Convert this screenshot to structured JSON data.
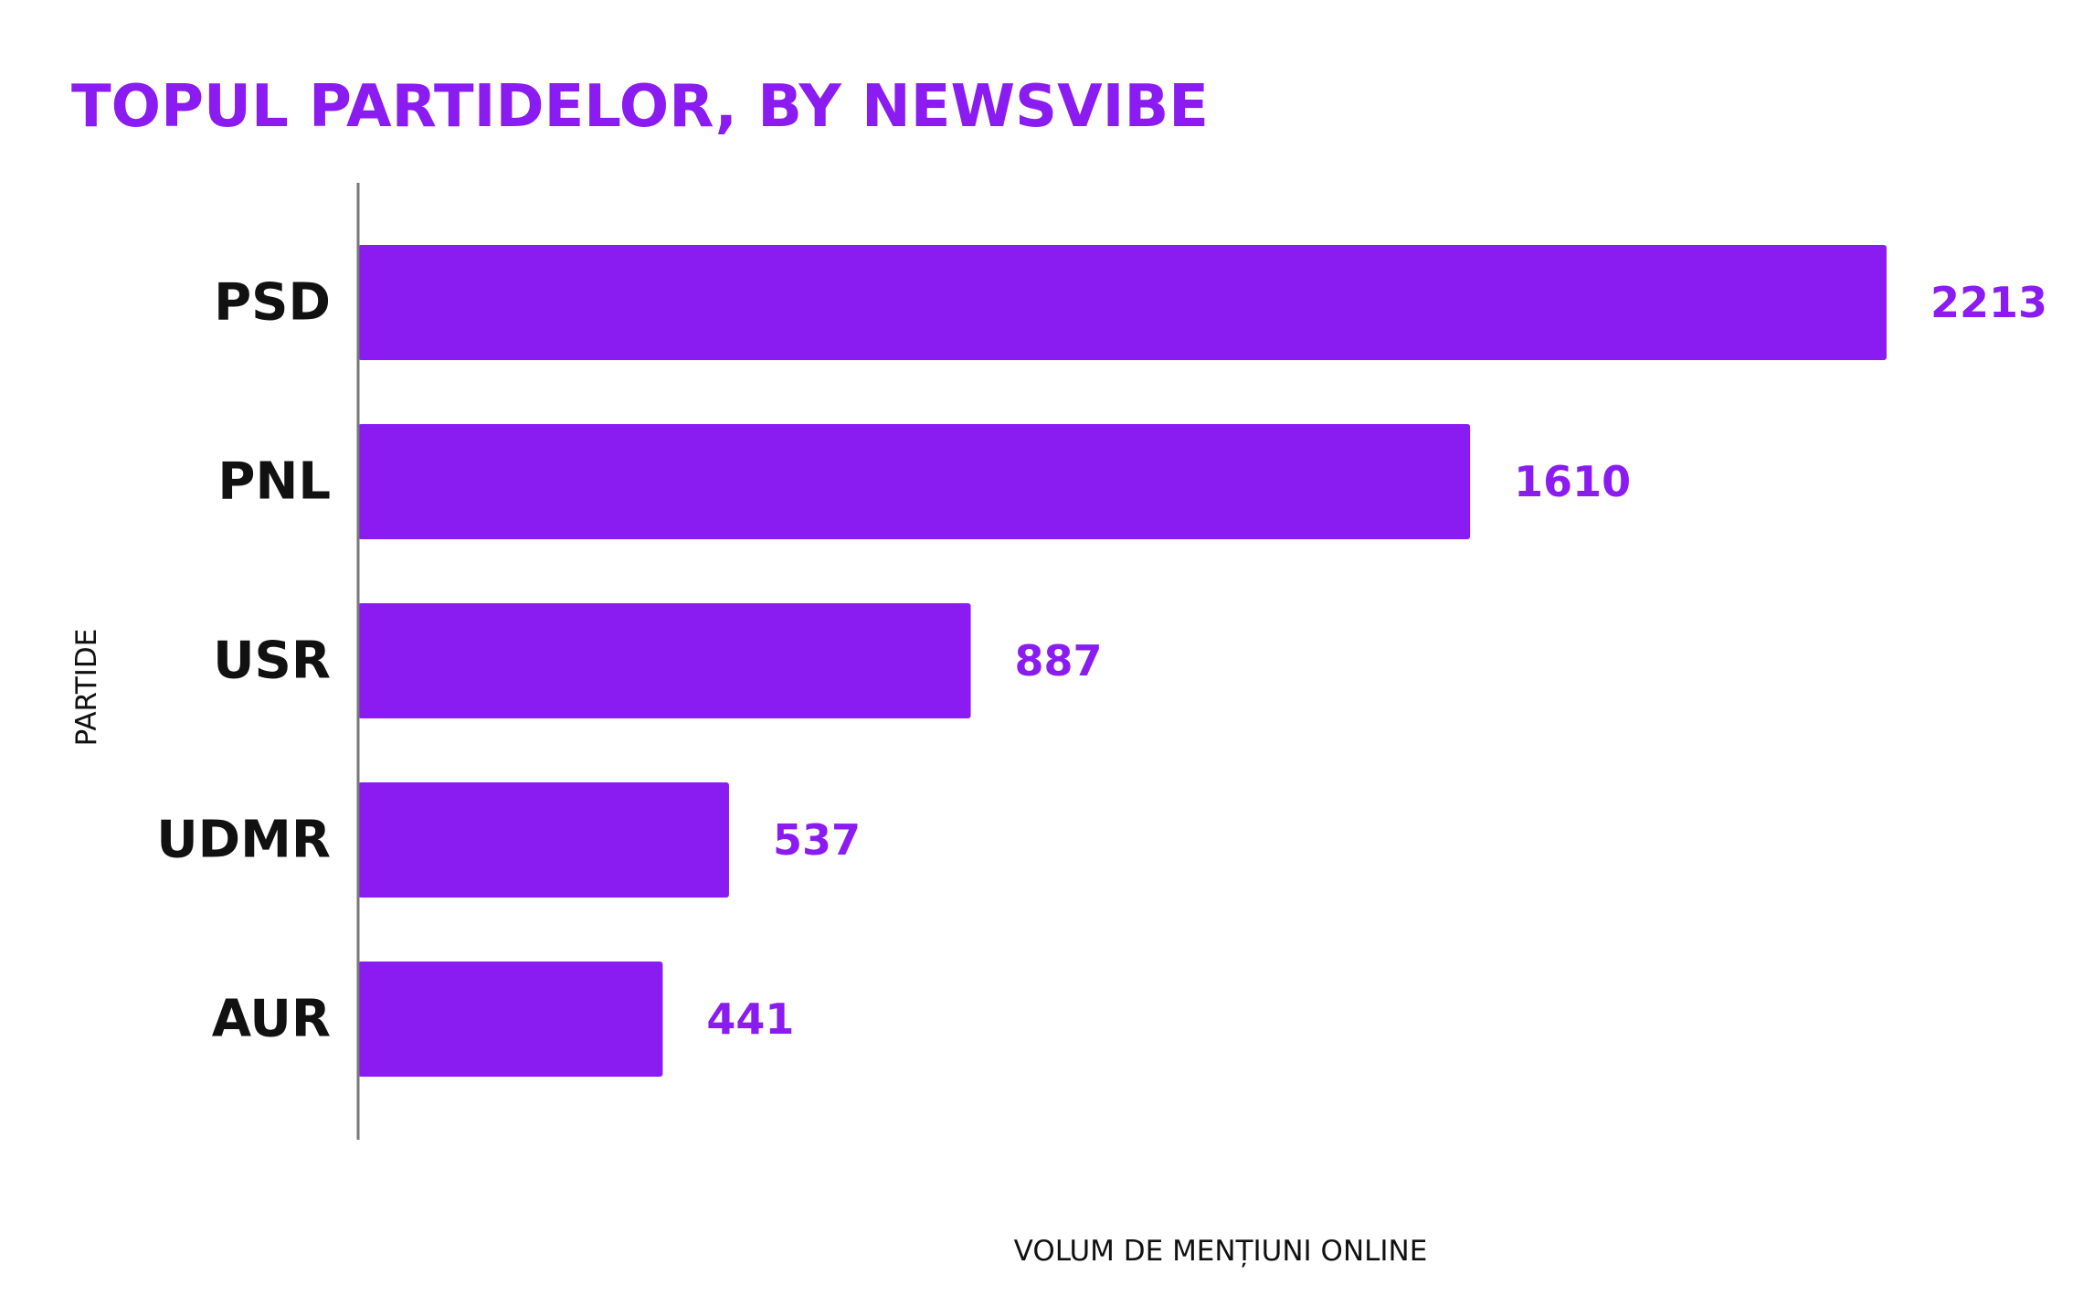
{
  "colors": {
    "accent": "#8a1cf2",
    "axis": "#777777",
    "text": "#111111",
    "background": "#ffffff"
  },
  "chart_data": {
    "type": "bar",
    "orientation": "horizontal",
    "title": "TOPUL PARTIDELOR, BY NEWSVIBE",
    "xlabel": "VOLUM DE MENȚIUNI ONLINE",
    "ylabel": "PARTIDE",
    "categories": [
      "PSD",
      "PNL",
      "USR",
      "UDMR",
      "AUR"
    ],
    "values": [
      2213,
      1610,
      887,
      537,
      441
    ],
    "xlim": [
      0,
      2213
    ],
    "grid": false,
    "legend": "none",
    "data_labels": true
  }
}
